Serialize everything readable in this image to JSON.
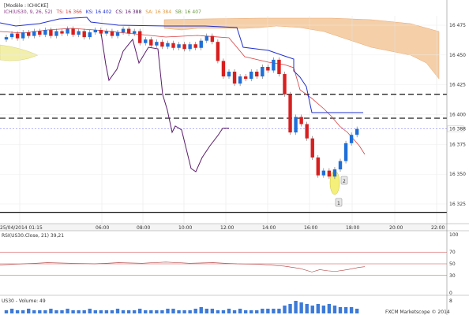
{
  "header": {
    "template": "[Modèle : ICHICKE]",
    "indicator_prefix": "ICH(US30, 9, 26, 52)",
    "ts_text": "TS: 16 366",
    "ks_text": "KS: 16 402",
    "cs_text": "CS: 16 388",
    "sa_text": "SA: 16 384",
    "sb_text": "SB: 16 407"
  },
  "colors": {
    "bull": "#1f6fd8",
    "bear": "#d81f1f",
    "tenkan": "#d84040",
    "kijun": "#2030d0",
    "chikou": "#5a1a6a",
    "cloud_bear": "#f5cfa8",
    "cloud_bull": "#f2f0a8",
    "dashed": "#111111",
    "current_price_line": "#a0a0ff",
    "ellipse": "#f5f07a"
  },
  "chart_data": {
    "type": "candlestick",
    "instrument": "US30",
    "y_ticks": [
      16475,
      16450,
      16425,
      16400,
      16375,
      16350,
      16325
    ],
    "x_ticks": [
      "25/04/2014 01:15",
      "06:00",
      "08:00",
      "10:00",
      "12:00",
      "14:00",
      "16:00",
      "18:00",
      "20:00",
      "22:00"
    ],
    "current_price": "16 388",
    "current_price_value": 16388,
    "dashed_levels": [
      16417,
      16397
    ],
    "solid_level": 16318,
    "candles": [
      {
        "o": 16463,
        "c": 16465
      },
      {
        "o": 16465,
        "c": 16468
      },
      {
        "o": 16468,
        "c": 16464
      },
      {
        "o": 16464,
        "c": 16469
      },
      {
        "o": 16469,
        "c": 16466
      },
      {
        "o": 16466,
        "c": 16470
      },
      {
        "o": 16470,
        "c": 16467
      },
      {
        "o": 16467,
        "c": 16471
      },
      {
        "o": 16471,
        "c": 16466
      },
      {
        "o": 16466,
        "c": 16470
      },
      {
        "o": 16470,
        "c": 16468
      },
      {
        "o": 16468,
        "c": 16472
      },
      {
        "o": 16472,
        "c": 16467
      },
      {
        "o": 16467,
        "c": 16470
      },
      {
        "o": 16470,
        "c": 16465
      },
      {
        "o": 16465,
        "c": 16469
      },
      {
        "o": 16469,
        "c": 16471
      },
      {
        "o": 16471,
        "c": 16468
      },
      {
        "o": 16468,
        "c": 16470
      },
      {
        "o": 16470,
        "c": 16466
      },
      {
        "o": 16466,
        "c": 16469
      },
      {
        "o": 16469,
        "c": 16472
      },
      {
        "o": 16472,
        "c": 16468
      },
      {
        "o": 16468,
        "c": 16470
      },
      {
        "o": 16470,
        "c": 16460
      },
      {
        "o": 16460,
        "c": 16463
      },
      {
        "o": 16463,
        "c": 16458
      },
      {
        "o": 16458,
        "c": 16461
      },
      {
        "o": 16461,
        "c": 16457
      },
      {
        "o": 16457,
        "c": 16460
      },
      {
        "o": 16460,
        "c": 16456
      },
      {
        "o": 16456,
        "c": 16459
      },
      {
        "o": 16459,
        "c": 16455
      },
      {
        "o": 16455,
        "c": 16459
      },
      {
        "o": 16459,
        "c": 16456
      },
      {
        "o": 16456,
        "c": 16462
      },
      {
        "o": 16462,
        "c": 16466
      },
      {
        "o": 16466,
        "c": 16461
      },
      {
        "o": 16461,
        "c": 16445
      },
      {
        "o": 16445,
        "c": 16432
      },
      {
        "o": 16432,
        "c": 16436
      },
      {
        "o": 16436,
        "c": 16426
      },
      {
        "o": 16426,
        "c": 16432
      },
      {
        "o": 16432,
        "c": 16430
      },
      {
        "o": 16430,
        "c": 16436
      },
      {
        "o": 16436,
        "c": 16432
      },
      {
        "o": 16432,
        "c": 16440
      },
      {
        "o": 16440,
        "c": 16437
      },
      {
        "o": 16437,
        "c": 16446
      },
      {
        "o": 16446,
        "c": 16434
      },
      {
        "o": 16434,
        "c": 16417
      },
      {
        "o": 16417,
        "c": 16385
      },
      {
        "o": 16385,
        "c": 16398
      },
      {
        "o": 16398,
        "c": 16392
      },
      {
        "o": 16392,
        "c": 16380
      },
      {
        "o": 16380,
        "c": 16364
      },
      {
        "o": 16364,
        "c": 16349
      },
      {
        "o": 16349,
        "c": 16353
      },
      {
        "o": 16353,
        "c": 16348
      },
      {
        "o": 16348,
        "c": 16354
      },
      {
        "o": 16354,
        "c": 16361
      },
      {
        "o": 16361,
        "c": 16376
      },
      {
        "o": 16376,
        "c": 16383
      },
      {
        "o": 16383,
        "c": 16388
      }
    ],
    "annotations": [
      "1",
      "2"
    ]
  },
  "rsi": {
    "label": "RSI(US30.Close, 21) 39,21",
    "ticks": [
      "100",
      "70",
      "50",
      "30",
      "0"
    ]
  },
  "volume": {
    "label": "US30 - Volume: 49",
    "tick": "8",
    "bars": [
      2,
      3,
      2,
      2,
      3,
      2,
      2,
      2,
      3,
      2,
      2,
      3,
      2,
      2,
      2,
      3,
      2,
      2,
      2,
      2,
      3,
      2,
      2,
      2,
      3,
      2,
      2,
      2,
      2,
      3,
      3,
      2,
      2,
      2,
      3,
      4,
      3,
      3,
      2,
      2,
      3,
      2,
      3,
      2,
      2,
      2,
      3,
      3,
      3,
      3,
      5,
      6,
      8,
      7,
      6,
      5,
      6,
      5,
      6,
      5,
      4,
      4,
      4,
      3
    ]
  },
  "footer": {
    "brand": "FXCM Marketscope © 2014"
  }
}
